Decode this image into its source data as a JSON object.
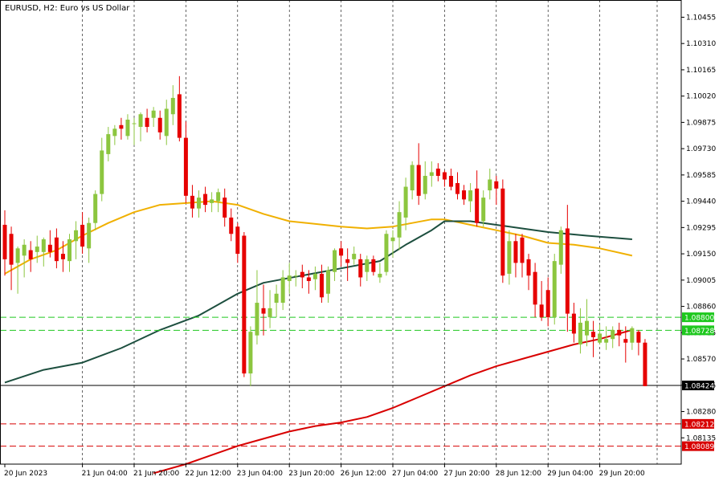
{
  "chart_data": {
    "type": "candlestick",
    "title": "EURUSD, H2:  Euro vs US Dollar",
    "price_axis": {
      "ylim": [
        1.0799,
        1.1055
      ],
      "ticks": [
        "1.10455",
        "1.10310",
        "1.10165",
        "1.10020",
        "1.09875",
        "1.09730",
        "1.09585",
        "1.09440",
        "1.09295",
        "1.09150",
        "1.09005",
        "1.08860",
        "1.08715",
        "1.08570",
        "1.08425",
        "1.08280",
        "1.08135"
      ]
    },
    "time_axis": {
      "ticks": [
        {
          "label": "20 Jun 2023",
          "bar": 0
        },
        {
          "label": "21 Jun 04:00",
          "bar": 12
        },
        {
          "label": "21 Jun 20:00",
          "bar": 20
        },
        {
          "label": "22 Jun 12:00",
          "bar": 28
        },
        {
          "label": "23 Jun 04:00",
          "bar": 36
        },
        {
          "label": "23 Jun 20:00",
          "bar": 44
        },
        {
          "label": "26 Jun 12:00",
          "bar": 52
        },
        {
          "label": "27 Jun 04:00",
          "bar": 60
        },
        {
          "label": "27 Jun 20:00",
          "bar": 68
        },
        {
          "label": "28 Jun 12:00",
          "bar": 76
        },
        {
          "label": "29 Jun 04:00",
          "bar": 84
        },
        {
          "label": "29 Jun 20:00",
          "bar": 92
        }
      ]
    },
    "candles": [
      {
        "o": 1.0931,
        "h": 1.0939,
        "l": 1.0903,
        "c": 1.0912
      },
      {
        "o": 1.0926,
        "h": 1.093,
        "l": 1.0895,
        "c": 1.0909
      },
      {
        "o": 1.091,
        "h": 1.0919,
        "l": 1.0893,
        "c": 1.0918
      },
      {
        "o": 1.0914,
        "h": 1.0923,
        "l": 1.0902,
        "c": 1.092
      },
      {
        "o": 1.0917,
        "h": 1.0922,
        "l": 1.0905,
        "c": 1.0912
      },
      {
        "o": 1.0916,
        "h": 1.0925,
        "l": 1.091,
        "c": 1.0919
      },
      {
        "o": 1.0916,
        "h": 1.0924,
        "l": 1.0908,
        "c": 1.0923
      },
      {
        "o": 1.092,
        "h": 1.0928,
        "l": 1.0913,
        "c": 1.0916
      },
      {
        "o": 1.0924,
        "h": 1.0929,
        "l": 1.0907,
        "c": 1.0911
      },
      {
        "o": 1.0915,
        "h": 1.0922,
        "l": 1.0905,
        "c": 1.0912
      },
      {
        "o": 1.0911,
        "h": 1.0926,
        "l": 1.0905,
        "c": 1.0923
      },
      {
        "o": 1.0922,
        "h": 1.0933,
        "l": 1.0912,
        "c": 1.0928
      },
      {
        "o": 1.0931,
        "h": 1.0938,
        "l": 1.0915,
        "c": 1.0919
      },
      {
        "o": 1.0918,
        "h": 1.0935,
        "l": 1.091,
        "c": 1.0932
      },
      {
        "o": 1.0932,
        "h": 1.095,
        "l": 1.0928,
        "c": 1.0948
      },
      {
        "o": 1.0948,
        "h": 1.0979,
        "l": 1.0944,
        "c": 1.0972
      },
      {
        "o": 1.097,
        "h": 1.0985,
        "l": 1.0966,
        "c": 1.0981
      },
      {
        "o": 1.098,
        "h": 1.0986,
        "l": 1.0975,
        "c": 1.0984
      },
      {
        "o": 1.0986,
        "h": 1.099,
        "l": 1.0978,
        "c": 1.0984
      },
      {
        "o": 1.098,
        "h": 1.0992,
        "l": 1.0978,
        "c": 1.0989
      },
      {
        "o": 1.0987,
        "h": 1.099,
        "l": 1.0975,
        "c": 1.0987
      },
      {
        "o": 1.0985,
        "h": 1.0993,
        "l": 1.0977,
        "c": 1.0992
      },
      {
        "o": 1.099,
        "h": 1.0995,
        "l": 1.0982,
        "c": 1.0985
      },
      {
        "o": 1.099,
        "h": 1.0996,
        "l": 1.0985,
        "c": 1.0994
      },
      {
        "o": 1.099,
        "h": 1.0994,
        "l": 1.0978,
        "c": 1.0982
      },
      {
        "o": 1.098,
        "h": 1.1,
        "l": 1.0975,
        "c": 1.0995
      },
      {
        "o": 1.0992,
        "h": 1.1008,
        "l": 1.0986,
        "c": 1.1001
      },
      {
        "o": 1.1003,
        "h": 1.1013,
        "l": 1.0977,
        "c": 1.0979
      },
      {
        "o": 1.0979,
        "h": 1.0988,
        "l": 1.0943,
        "c": 1.0947
      },
      {
        "o": 1.0947,
        "h": 1.0953,
        "l": 1.0935,
        "c": 1.094
      },
      {
        "o": 1.094,
        "h": 1.095,
        "l": 1.0935,
        "c": 1.0946
      },
      {
        "o": 1.0948,
        "h": 1.0952,
        "l": 1.0938,
        "c": 1.0942
      },
      {
        "o": 1.0943,
        "h": 1.0949,
        "l": 1.0938,
        "c": 1.0945
      },
      {
        "o": 1.0944,
        "h": 1.0951,
        "l": 1.0938,
        "c": 1.0949
      },
      {
        "o": 1.0946,
        "h": 1.0951,
        "l": 1.093,
        "c": 1.0935
      },
      {
        "o": 1.0935,
        "h": 1.094,
        "l": 1.0922,
        "c": 1.0926
      },
      {
        "o": 1.093,
        "h": 1.0932,
        "l": 1.091,
        "c": 1.0915
      },
      {
        "o": 1.0925,
        "h": 1.0927,
        "l": 1.0847,
        "c": 1.0849
      },
      {
        "o": 1.0849,
        "h": 1.0875,
        "l": 1.0842,
        "c": 1.0872
      },
      {
        "o": 1.087,
        "h": 1.0906,
        "l": 1.0865,
        "c": 1.0888
      },
      {
        "o": 1.0885,
        "h": 1.0898,
        "l": 1.087,
        "c": 1.0882
      },
      {
        "o": 1.088,
        "h": 1.0895,
        "l": 1.0874,
        "c": 1.0885
      },
      {
        "o": 1.0888,
        "h": 1.0898,
        "l": 1.088,
        "c": 1.0893
      },
      {
        "o": 1.0888,
        "h": 1.0906,
        "l": 1.0884,
        "c": 1.0902
      },
      {
        "o": 1.09,
        "h": 1.091,
        "l": 1.0893,
        "c": 1.0903
      },
      {
        "o": 1.0903,
        "h": 1.0906,
        "l": 1.0897,
        "c": 1.0903
      },
      {
        "o": 1.0905,
        "h": 1.0909,
        "l": 1.0896,
        "c": 1.0902
      },
      {
        "o": 1.0902,
        "h": 1.0906,
        "l": 1.0893,
        "c": 1.09
      },
      {
        "o": 1.0901,
        "h": 1.0908,
        "l": 1.0895,
        "c": 1.0904
      },
      {
        "o": 1.0904,
        "h": 1.0909,
        "l": 1.0888,
        "c": 1.0891
      },
      {
        "o": 1.0893,
        "h": 1.0908,
        "l": 1.0888,
        "c": 1.0906
      },
      {
        "o": 1.0905,
        "h": 1.0918,
        "l": 1.09,
        "c": 1.0917
      },
      {
        "o": 1.0918,
        "h": 1.0922,
        "l": 1.0908,
        "c": 1.0914
      },
      {
        "o": 1.0912,
        "h": 1.0918,
        "l": 1.09,
        "c": 1.091
      },
      {
        "o": 1.0912,
        "h": 1.0919,
        "l": 1.0909,
        "c": 1.0915
      },
      {
        "o": 1.0912,
        "h": 1.0915,
        "l": 1.0897,
        "c": 1.0902
      },
      {
        "o": 1.0905,
        "h": 1.0914,
        "l": 1.09,
        "c": 1.0912
      },
      {
        "o": 1.0912,
        "h": 1.0914,
        "l": 1.0903,
        "c": 1.0905
      },
      {
        "o": 1.0902,
        "h": 1.091,
        "l": 1.0899,
        "c": 1.0904
      },
      {
        "o": 1.0905,
        "h": 1.0928,
        "l": 1.0903,
        "c": 1.0926
      },
      {
        "o": 1.0922,
        "h": 1.0928,
        "l": 1.0913,
        "c": 1.0924
      },
      {
        "o": 1.0924,
        "h": 1.0944,
        "l": 1.0917,
        "c": 1.0938
      },
      {
        "o": 1.0935,
        "h": 1.0957,
        "l": 1.0928,
        "c": 1.0952
      },
      {
        "o": 1.095,
        "h": 1.0966,
        "l": 1.0945,
        "c": 1.0964
      },
      {
        "o": 1.0964,
        "h": 1.0976,
        "l": 1.0942,
        "c": 1.0947
      },
      {
        "o": 1.0948,
        "h": 1.0966,
        "l": 1.0945,
        "c": 1.0958
      },
      {
        "o": 1.0958,
        "h": 1.0966,
        "l": 1.0952,
        "c": 1.096
      },
      {
        "o": 1.0962,
        "h": 1.0965,
        "l": 1.0955,
        "c": 1.0958
      },
      {
        "o": 1.096,
        "h": 1.0961,
        "l": 1.0952,
        "c": 1.0956
      },
      {
        "o": 1.0958,
        "h": 1.0962,
        "l": 1.095,
        "c": 1.0952
      },
      {
        "o": 1.0954,
        "h": 1.096,
        "l": 1.0945,
        "c": 1.0948
      },
      {
        "o": 1.095,
        "h": 1.0953,
        "l": 1.0942,
        "c": 1.0945
      },
      {
        "o": 1.0944,
        "h": 1.0954,
        "l": 1.0938,
        "c": 1.095
      },
      {
        "o": 1.0951,
        "h": 1.0961,
        "l": 1.093,
        "c": 1.0932
      },
      {
        "o": 1.0933,
        "h": 1.095,
        "l": 1.093,
        "c": 1.0946
      },
      {
        "o": 1.095,
        "h": 1.0962,
        "l": 1.0945,
        "c": 1.0956
      },
      {
        "o": 1.0955,
        "h": 1.0958,
        "l": 1.0942,
        "c": 1.0951
      },
      {
        "o": 1.0951,
        "h": 1.0956,
        "l": 1.0899,
        "c": 1.0903
      },
      {
        "o": 1.0904,
        "h": 1.0928,
        "l": 1.0898,
        "c": 1.0922
      },
      {
        "o": 1.0922,
        "h": 1.0926,
        "l": 1.0902,
        "c": 1.091
      },
      {
        "o": 1.0924,
        "h": 1.0926,
        "l": 1.0902,
        "c": 1.091
      },
      {
        "o": 1.0912,
        "h": 1.0915,
        "l": 1.0895,
        "c": 1.0903
      },
      {
        "o": 1.0905,
        "h": 1.091,
        "l": 1.088,
        "c": 1.0887
      },
      {
        "o": 1.0887,
        "h": 1.09,
        "l": 1.0878,
        "c": 1.088
      },
      {
        "o": 1.0895,
        "h": 1.0902,
        "l": 1.0875,
        "c": 1.088
      },
      {
        "o": 1.088,
        "h": 1.0915,
        "l": 1.0876,
        "c": 1.0911
      },
      {
        "o": 1.0909,
        "h": 1.093,
        "l": 1.0904,
        "c": 1.0928
      },
      {
        "o": 1.0929,
        "h": 1.0942,
        "l": 1.0872,
        "c": 1.0882
      },
      {
        "o": 1.0882,
        "h": 1.0888,
        "l": 1.0866,
        "c": 1.0871
      },
      {
        "o": 1.0865,
        "h": 1.0885,
        "l": 1.086,
        "c": 1.0877
      },
      {
        "o": 1.087,
        "h": 1.089,
        "l": 1.0864,
        "c": 1.0878
      },
      {
        "o": 1.0872,
        "h": 1.0878,
        "l": 1.0858,
        "c": 1.0869
      },
      {
        "o": 1.0866,
        "h": 1.0876,
        "l": 1.0865,
        "c": 1.0871
      },
      {
        "o": 1.0866,
        "h": 1.0875,
        "l": 1.0862,
        "c": 1.0868
      },
      {
        "o": 1.0868,
        "h": 1.0875,
        "l": 1.0863,
        "c": 1.0873
      },
      {
        "o": 1.0873,
        "h": 1.0877,
        "l": 1.0864,
        "c": 1.087
      },
      {
        "o": 1.0868,
        "h": 1.0875,
        "l": 1.0855,
        "c": 1.0866
      },
      {
        "o": 1.0866,
        "h": 1.0875,
        "l": 1.0862,
        "c": 1.0874
      },
      {
        "o": 1.0872,
        "h": 1.0873,
        "l": 1.0859,
        "c": 1.0866
      },
      {
        "o": 1.0866,
        "h": 1.0868,
        "l": 1.0842,
        "c": 1.0842
      }
    ],
    "moving_averages": [
      {
        "color": "#f0b000",
        "points": [
          [
            0,
            1.0904
          ],
          [
            4,
            1.0912
          ],
          [
            8,
            1.0917
          ],
          [
            12,
            1.0925
          ],
          [
            16,
            1.0932
          ],
          [
            20,
            1.0938
          ],
          [
            24,
            1.0942
          ],
          [
            28,
            1.0943
          ],
          [
            32,
            1.0944
          ],
          [
            36,
            1.0942
          ],
          [
            40,
            1.0937
          ],
          [
            44,
            1.0933
          ],
          [
            52,
            1.093
          ],
          [
            56,
            1.0929
          ],
          [
            60,
            1.093
          ],
          [
            63,
            1.0932
          ],
          [
            66,
            1.0934
          ],
          [
            68,
            1.0934
          ],
          [
            72,
            1.0931
          ],
          [
            76,
            1.0928
          ],
          [
            80,
            1.0925
          ],
          [
            84,
            1.0921
          ],
          [
            88,
            1.092
          ],
          [
            92,
            1.0918
          ],
          [
            97,
            1.0914
          ]
        ]
      },
      {
        "color": "#1d4f3f",
        "points": [
          [
            0,
            1.0844
          ],
          [
            6,
            1.0851
          ],
          [
            12,
            1.0855
          ],
          [
            18,
            1.0863
          ],
          [
            24,
            1.0873
          ],
          [
            30,
            1.0881
          ],
          [
            36,
            1.0893
          ],
          [
            40,
            1.0899
          ],
          [
            46,
            1.0903
          ],
          [
            52,
            1.0907
          ],
          [
            58,
            1.0911
          ],
          [
            62,
            1.092
          ],
          [
            66,
            1.0928
          ],
          [
            68,
            1.0933
          ],
          [
            72,
            1.0933
          ],
          [
            76,
            1.0931
          ],
          [
            80,
            1.0929
          ],
          [
            84,
            1.0927
          ],
          [
            90,
            1.0925
          ],
          [
            97,
            1.0923
          ]
        ]
      },
      {
        "color": "#d80000",
        "points": [
          [
            23,
            1.0794
          ],
          [
            28,
            1.0799
          ],
          [
            32,
            1.0804
          ],
          [
            36,
            1.0809
          ],
          [
            40,
            1.0813
          ],
          [
            44,
            1.0817
          ],
          [
            48,
            1.082
          ],
          [
            52,
            1.0822
          ],
          [
            56,
            1.0825
          ],
          [
            60,
            1.083
          ],
          [
            64,
            1.0836
          ],
          [
            68,
            1.0842
          ],
          [
            72,
            1.0848
          ],
          [
            76,
            1.0853
          ],
          [
            80,
            1.0857
          ],
          [
            84,
            1.0861
          ],
          [
            88,
            1.0865
          ],
          [
            92,
            1.0868
          ],
          [
            97,
            1.0873
          ]
        ]
      }
    ],
    "horizontal_lines": [
      {
        "value": 1.088,
        "label": "1.08800",
        "color": "#1ec81e",
        "style": "dashed"
      },
      {
        "value": 1.08728,
        "label": "1.08728",
        "color": "#1ec81e",
        "style": "dashed"
      },
      {
        "value": 1.08424,
        "label": "1.08424",
        "color": "#000000",
        "style": "solid"
      },
      {
        "value": 1.08212,
        "label": "1.08212",
        "color": "#d80000",
        "style": "dashed"
      },
      {
        "value": 1.08089,
        "label": "1.08089",
        "color": "#d80000",
        "style": "dashed"
      }
    ],
    "colors": {
      "bull": "#8cc63f",
      "bear": "#e60000",
      "grid": "#000000",
      "axis_text": "#000000"
    },
    "grid": true
  }
}
